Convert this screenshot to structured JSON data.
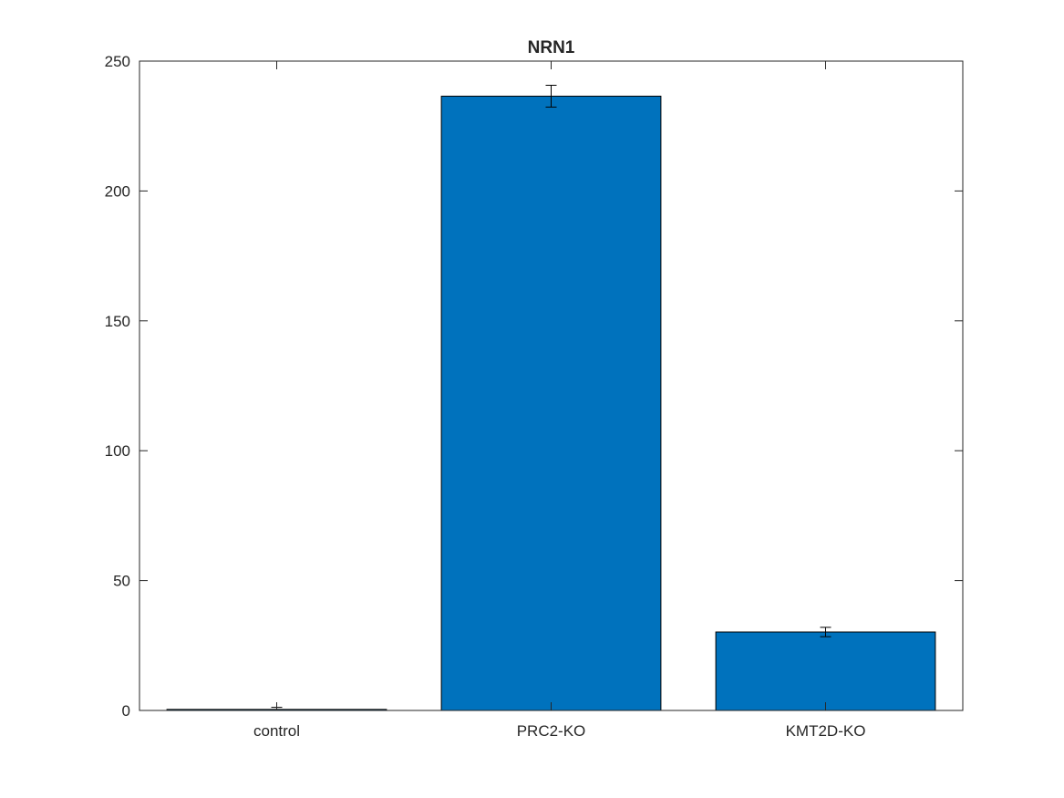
{
  "chart_data": {
    "type": "bar",
    "title": "NRN1",
    "xlabel": "",
    "ylabel": "",
    "categories": [
      "control",
      "PRC2-KO",
      "KMT2D-KO"
    ],
    "values": [
      0.4,
      236.5,
      30.2
    ],
    "errors": [
      0.8,
      4.2,
      1.8
    ],
    "ylim": [
      0,
      250
    ],
    "yticks": [
      0,
      50,
      100,
      150,
      200,
      250
    ],
    "bar_color": "#0072BD",
    "grid": false,
    "legend": "none"
  }
}
